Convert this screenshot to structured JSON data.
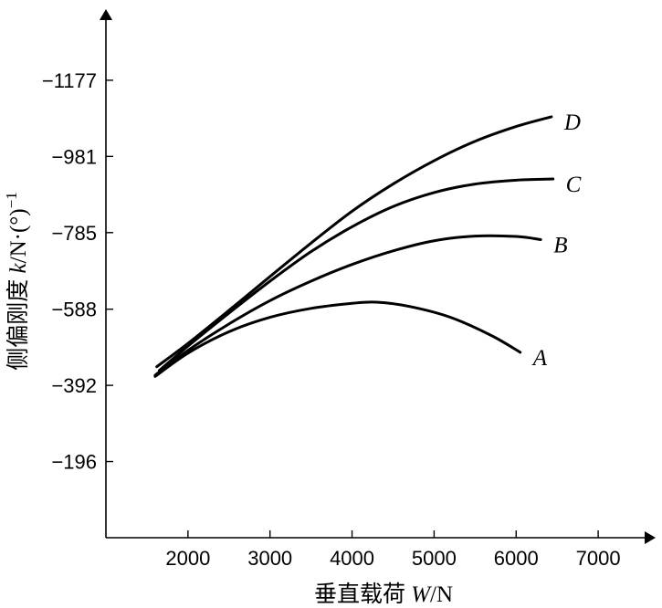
{
  "chart_data": {
    "type": "line",
    "xlabel": {
      "prefix": "垂直载荷 ",
      "var": "W",
      "unit": "/N"
    },
    "ylabel": {
      "prefix": "侧偏刚度 ",
      "var": "k",
      "unit": "/N·(°)",
      "sup": "−1"
    },
    "x_ticks": [
      2000,
      3000,
      4000,
      5000,
      6000,
      7000
    ],
    "y_ticks": [
      -196,
      -392,
      -588,
      -785,
      -981,
      -1177
    ],
    "y_tick_labels": [
      "−196",
      "−392",
      "−588",
      "−785",
      "−981",
      "−1177"
    ],
    "xlim": [
      1000,
      7700
    ],
    "ylim": [
      0,
      -1360
    ],
    "series": [
      {
        "name": "A",
        "points": [
          [
            1600,
            -415
          ],
          [
            2000,
            -475
          ],
          [
            2500,
            -530
          ],
          [
            3000,
            -567
          ],
          [
            3500,
            -590
          ],
          [
            4000,
            -603
          ],
          [
            4300,
            -606
          ],
          [
            4700,
            -595
          ],
          [
            5200,
            -567
          ],
          [
            5700,
            -520
          ],
          [
            6050,
            -477
          ]
        ]
      },
      {
        "name": "B",
        "points": [
          [
            1600,
            -418
          ],
          [
            2000,
            -482
          ],
          [
            2500,
            -550
          ],
          [
            3000,
            -610
          ],
          [
            3500,
            -660
          ],
          [
            4000,
            -703
          ],
          [
            4500,
            -738
          ],
          [
            5000,
            -764
          ],
          [
            5500,
            -776
          ],
          [
            6000,
            -775
          ],
          [
            6300,
            -767
          ]
        ]
      },
      {
        "name": "C",
        "points": [
          [
            1650,
            -430
          ],
          [
            2000,
            -493
          ],
          [
            2500,
            -578
          ],
          [
            3000,
            -660
          ],
          [
            3500,
            -736
          ],
          [
            4000,
            -800
          ],
          [
            4500,
            -852
          ],
          [
            5000,
            -888
          ],
          [
            5500,
            -910
          ],
          [
            6000,
            -920
          ],
          [
            6450,
            -923
          ]
        ]
      },
      {
        "name": "D",
        "points": [
          [
            1620,
            -440
          ],
          [
            2000,
            -500
          ],
          [
            2500,
            -585
          ],
          [
            3000,
            -672
          ],
          [
            3500,
            -758
          ],
          [
            4000,
            -840
          ],
          [
            4500,
            -910
          ],
          [
            5000,
            -970
          ],
          [
            5500,
            -1020
          ],
          [
            6000,
            -1058
          ],
          [
            6430,
            -1083
          ]
        ]
      }
    ]
  }
}
